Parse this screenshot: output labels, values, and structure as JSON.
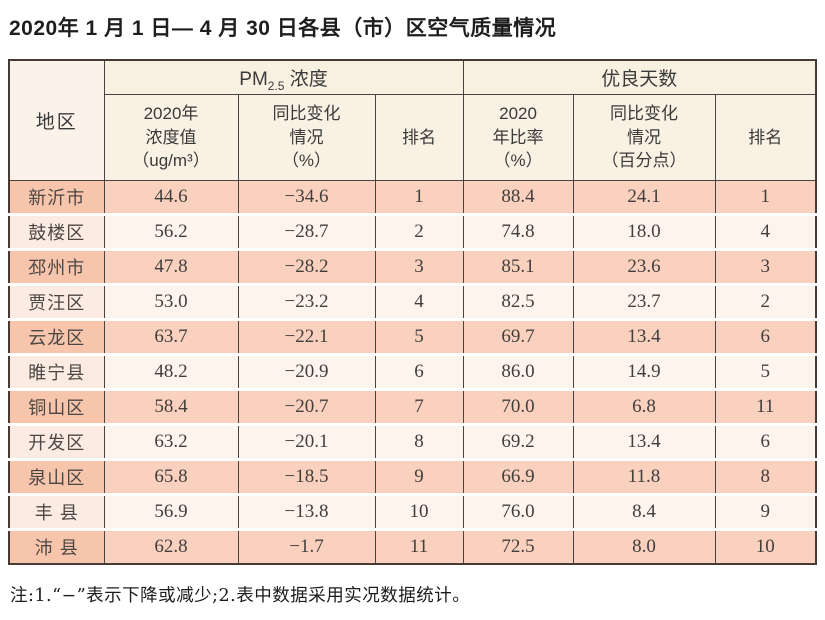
{
  "title": "2020年 1 月 1 日— 4 月 30 日各县（市）区空气质量情况",
  "note": "注:1.“−”表示下降或减少;2.表中数据采用实况数据统计。",
  "colors": {
    "row_odd_bg": "#f9d1be",
    "row_odd_region_bg": "#f7c5ac",
    "row_even_bg": "#fdf4ee",
    "row_even_region_bg": "#fcebe2",
    "header_bg": "#f8f1e1",
    "border": "#4b4341"
  },
  "chart_data": {
    "type": "table",
    "title": "2020年 1 月 1 日— 4 月 30 日各县（市）区空气质量情况",
    "header": {
      "region": "地区",
      "pm_group": {
        "prefix": "PM",
        "sub": "2.5",
        "suffix": " 浓度"
      },
      "good_group": "优良天数",
      "subcolumns": [
        "2020年\n浓度值\n（ug/m³）",
        "同比变化\n情况\n（%）",
        "排名",
        "2020\n年比率\n（%）",
        "同比变化\n情况\n（百分点）",
        "排名"
      ]
    },
    "rows": [
      {
        "region": "新沂市",
        "pm_value": "44.6",
        "pm_change": "−34.6",
        "pm_rank": "1",
        "good_rate": "88.4",
        "good_change": "24.1",
        "good_rank": "1"
      },
      {
        "region": "鼓楼区",
        "pm_value": "56.2",
        "pm_change": "−28.7",
        "pm_rank": "2",
        "good_rate": "74.8",
        "good_change": "18.0",
        "good_rank": "4"
      },
      {
        "region": "邳州市",
        "pm_value": "47.8",
        "pm_change": "−28.2",
        "pm_rank": "3",
        "good_rate": "85.1",
        "good_change": "23.6",
        "good_rank": "3"
      },
      {
        "region": "贾汪区",
        "pm_value": "53.0",
        "pm_change": "−23.2",
        "pm_rank": "4",
        "good_rate": "82.5",
        "good_change": "23.7",
        "good_rank": "2"
      },
      {
        "region": "云龙区",
        "pm_value": "63.7",
        "pm_change": "−22.1",
        "pm_rank": "5",
        "good_rate": "69.7",
        "good_change": "13.4",
        "good_rank": "6"
      },
      {
        "region": "睢宁县",
        "pm_value": "48.2",
        "pm_change": "−20.9",
        "pm_rank": "6",
        "good_rate": "86.0",
        "good_change": "14.9",
        "good_rank": "5"
      },
      {
        "region": "铜山区",
        "pm_value": "58.4",
        "pm_change": "−20.7",
        "pm_rank": "7",
        "good_rate": "70.0",
        "good_change": "6.8",
        "good_rank": "11"
      },
      {
        "region": "开发区",
        "pm_value": "63.2",
        "pm_change": "−20.1",
        "pm_rank": "8",
        "good_rate": "69.2",
        "good_change": "13.4",
        "good_rank": "6"
      },
      {
        "region": "泉山区",
        "pm_value": "65.8",
        "pm_change": "−18.5",
        "pm_rank": "9",
        "good_rate": "66.9",
        "good_change": "11.8",
        "good_rank": "8"
      },
      {
        "region": "丰 县",
        "pm_value": "56.9",
        "pm_change": "−13.8",
        "pm_rank": "10",
        "good_rate": "76.0",
        "good_change": "8.4",
        "good_rank": "9"
      },
      {
        "region": "沛 县",
        "pm_value": "62.8",
        "pm_change": "−1.7",
        "pm_rank": "11",
        "good_rate": "72.5",
        "good_change": "8.0",
        "good_rank": "10"
      }
    ]
  }
}
